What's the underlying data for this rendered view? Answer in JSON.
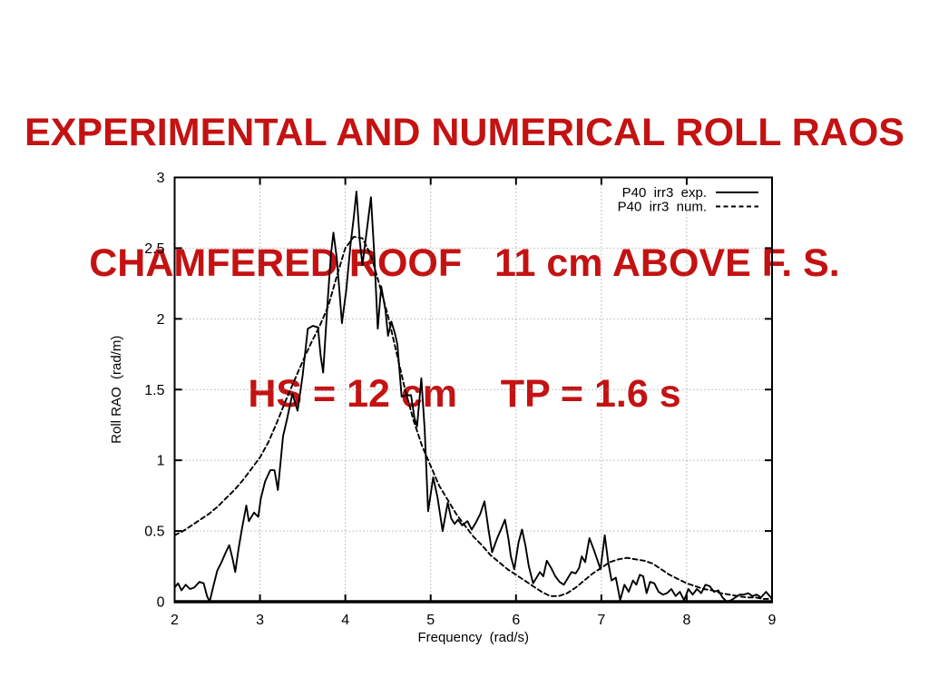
{
  "slide": {
    "title": {
      "line1": "EXPERIMENTAL AND NUMERICAL ROLL RAOS",
      "line2": "CHAMFERED ROOF   11 cm ABOVE F. S.",
      "line3": "HS = 12 cm    TP = 1.6 s",
      "color": "#c41212"
    }
  },
  "chart_data": {
    "type": "line",
    "title": "",
    "xlabel": "Frequency  (rad/s)",
    "ylabel": "Roll RAO  (rad/m)",
    "xlim": [
      2,
      9
    ],
    "ylim": [
      0,
      3
    ],
    "xticks": [
      2,
      3,
      4,
      5,
      6,
      7,
      8,
      9
    ],
    "yticks": [
      0,
      0.5,
      1,
      1.5,
      2,
      2.5,
      3
    ],
    "grid": "dotted",
    "legend_position": "top-right-inside",
    "axis_color": "#000000",
    "grid_color": "#8a8a8a",
    "series": [
      {
        "name": "P40  irr3  exp.",
        "style": "solid",
        "color": "#000000",
        "points": [
          [
            2.0,
            0.1
          ],
          [
            2.04,
            0.13
          ],
          [
            2.08,
            0.08
          ],
          [
            2.13,
            0.12
          ],
          [
            2.18,
            0.09
          ],
          [
            2.23,
            0.1
          ],
          [
            2.29,
            0.14
          ],
          [
            2.34,
            0.13
          ],
          [
            2.38,
            0.04
          ],
          [
            2.41,
            0.0
          ],
          [
            2.45,
            0.1
          ],
          [
            2.5,
            0.22
          ],
          [
            2.55,
            0.28
          ],
          [
            2.6,
            0.35
          ],
          [
            2.64,
            0.4
          ],
          [
            2.68,
            0.3
          ],
          [
            2.71,
            0.21
          ],
          [
            2.75,
            0.38
          ],
          [
            2.79,
            0.52
          ],
          [
            2.84,
            0.68
          ],
          [
            2.87,
            0.57
          ],
          [
            2.9,
            0.6
          ],
          [
            2.93,
            0.63
          ],
          [
            2.98,
            0.6
          ],
          [
            3.01,
            0.73
          ],
          [
            3.06,
            0.85
          ],
          [
            3.12,
            0.93
          ],
          [
            3.17,
            0.93
          ],
          [
            3.21,
            0.79
          ],
          [
            3.27,
            1.17
          ],
          [
            3.32,
            1.3
          ],
          [
            3.38,
            1.47
          ],
          [
            3.44,
            1.35
          ],
          [
            3.5,
            1.6
          ],
          [
            3.56,
            1.93
          ],
          [
            3.62,
            1.95
          ],
          [
            3.68,
            1.94
          ],
          [
            3.71,
            1.74
          ],
          [
            3.74,
            1.62
          ],
          [
            3.79,
            2.1
          ],
          [
            3.83,
            2.45
          ],
          [
            3.86,
            2.61
          ],
          [
            3.9,
            2.43
          ],
          [
            3.93,
            2.2
          ],
          [
            3.96,
            1.97
          ],
          [
            4.01,
            2.2
          ],
          [
            4.06,
            2.52
          ],
          [
            4.1,
            2.72
          ],
          [
            4.13,
            2.9
          ],
          [
            4.17,
            2.55
          ],
          [
            4.2,
            2.38
          ],
          [
            4.25,
            2.62
          ],
          [
            4.3,
            2.86
          ],
          [
            4.34,
            2.45
          ],
          [
            4.38,
            1.93
          ],
          [
            4.42,
            2.23
          ],
          [
            4.47,
            2.06
          ],
          [
            4.5,
            1.88
          ],
          [
            4.54,
            1.98
          ],
          [
            4.58,
            1.9
          ],
          [
            4.61,
            1.82
          ],
          [
            4.66,
            1.45
          ],
          [
            4.72,
            1.46
          ],
          [
            4.77,
            1.46
          ],
          [
            4.81,
            1.3
          ],
          [
            4.84,
            1.24
          ],
          [
            4.89,
            1.58
          ],
          [
            4.93,
            1.22
          ],
          [
            4.97,
            0.64
          ],
          [
            5.03,
            0.88
          ],
          [
            5.08,
            0.74
          ],
          [
            5.14,
            0.5
          ],
          [
            5.2,
            0.7
          ],
          [
            5.24,
            0.59
          ],
          [
            5.28,
            0.55
          ],
          [
            5.32,
            0.58
          ],
          [
            5.37,
            0.54
          ],
          [
            5.43,
            0.57
          ],
          [
            5.48,
            0.51
          ],
          [
            5.53,
            0.56
          ],
          [
            5.58,
            0.62
          ],
          [
            5.63,
            0.71
          ],
          [
            5.68,
            0.5
          ],
          [
            5.72,
            0.35
          ],
          [
            5.78,
            0.45
          ],
          [
            5.83,
            0.52
          ],
          [
            5.87,
            0.58
          ],
          [
            5.91,
            0.45
          ],
          [
            5.94,
            0.32
          ],
          [
            5.98,
            0.23
          ],
          [
            6.03,
            0.42
          ],
          [
            6.07,
            0.51
          ],
          [
            6.11,
            0.4
          ],
          [
            6.15,
            0.25
          ],
          [
            6.2,
            0.13
          ],
          [
            6.24,
            0.17
          ],
          [
            6.28,
            0.21
          ],
          [
            6.32,
            0.18
          ],
          [
            6.36,
            0.29
          ],
          [
            6.41,
            0.24
          ],
          [
            6.46,
            0.18
          ],
          [
            6.51,
            0.14
          ],
          [
            6.56,
            0.12
          ],
          [
            6.61,
            0.17
          ],
          [
            6.65,
            0.21
          ],
          [
            6.7,
            0.2
          ],
          [
            6.74,
            0.24
          ],
          [
            6.77,
            0.32
          ],
          [
            6.81,
            0.28
          ],
          [
            6.86,
            0.45
          ],
          [
            6.91,
            0.37
          ],
          [
            6.95,
            0.3
          ],
          [
            6.99,
            0.23
          ],
          [
            7.04,
            0.47
          ],
          [
            7.08,
            0.28
          ],
          [
            7.12,
            0.15
          ],
          [
            7.17,
            0.17
          ],
          [
            7.22,
            0.01
          ],
          [
            7.27,
            0.12
          ],
          [
            7.32,
            0.07
          ],
          [
            7.37,
            0.15
          ],
          [
            7.41,
            0.12
          ],
          [
            7.45,
            0.19
          ],
          [
            7.49,
            0.18
          ],
          [
            7.53,
            0.06
          ],
          [
            7.57,
            0.14
          ],
          [
            7.62,
            0.13
          ],
          [
            7.67,
            0.07
          ],
          [
            7.72,
            0.05
          ],
          [
            7.77,
            0.06
          ],
          [
            7.82,
            0.09
          ],
          [
            7.87,
            0.04
          ],
          [
            7.92,
            0.07
          ],
          [
            7.97,
            0.01
          ],
          [
            8.02,
            0.09
          ],
          [
            8.07,
            0.05
          ],
          [
            8.12,
            0.09
          ],
          [
            8.17,
            0.06
          ],
          [
            8.22,
            0.12
          ],
          [
            8.27,
            0.11
          ],
          [
            8.32,
            0.07
          ],
          [
            8.37,
            0.08
          ],
          [
            8.42,
            0.03
          ],
          [
            8.47,
            0.0
          ],
          [
            8.52,
            0.01
          ],
          [
            8.57,
            0.03
          ],
          [
            8.62,
            0.05
          ],
          [
            8.67,
            0.05
          ],
          [
            8.72,
            0.06
          ],
          [
            8.77,
            0.04
          ],
          [
            8.82,
            0.05
          ],
          [
            8.87,
            0.03
          ],
          [
            8.93,
            0.07
          ],
          [
            9.0,
            0.02
          ]
        ]
      },
      {
        "name": "P40  irr3  num.",
        "style": "dashed",
        "color": "#000000",
        "points": [
          [
            2.0,
            0.47
          ],
          [
            2.1,
            0.5
          ],
          [
            2.2,
            0.54
          ],
          [
            2.3,
            0.58
          ],
          [
            2.4,
            0.62
          ],
          [
            2.5,
            0.67
          ],
          [
            2.6,
            0.73
          ],
          [
            2.7,
            0.79
          ],
          [
            2.8,
            0.86
          ],
          [
            2.9,
            0.94
          ],
          [
            3.0,
            1.02
          ],
          [
            3.1,
            1.13
          ],
          [
            3.2,
            1.27
          ],
          [
            3.3,
            1.42
          ],
          [
            3.4,
            1.56
          ],
          [
            3.5,
            1.7
          ],
          [
            3.6,
            1.83
          ],
          [
            3.7,
            1.95
          ],
          [
            3.8,
            2.09
          ],
          [
            3.9,
            2.3
          ],
          [
            4.0,
            2.5
          ],
          [
            4.1,
            2.58
          ],
          [
            4.2,
            2.57
          ],
          [
            4.3,
            2.45
          ],
          [
            4.4,
            2.24
          ],
          [
            4.5,
            2.02
          ],
          [
            4.6,
            1.76
          ],
          [
            4.7,
            1.5
          ],
          [
            4.8,
            1.28
          ],
          [
            4.9,
            1.1
          ],
          [
            5.0,
            0.96
          ],
          [
            5.1,
            0.82
          ],
          [
            5.2,
            0.72
          ],
          [
            5.3,
            0.62
          ],
          [
            5.4,
            0.54
          ],
          [
            5.5,
            0.46
          ],
          [
            5.6,
            0.4
          ],
          [
            5.7,
            0.33
          ],
          [
            5.8,
            0.28
          ],
          [
            5.9,
            0.23
          ],
          [
            6.0,
            0.19
          ],
          [
            6.1,
            0.15
          ],
          [
            6.2,
            0.11
          ],
          [
            6.3,
            0.07
          ],
          [
            6.4,
            0.04
          ],
          [
            6.5,
            0.04
          ],
          [
            6.6,
            0.06
          ],
          [
            6.7,
            0.1
          ],
          [
            6.8,
            0.15
          ],
          [
            6.9,
            0.2
          ],
          [
            7.0,
            0.24
          ],
          [
            7.1,
            0.28
          ],
          [
            7.2,
            0.3
          ],
          [
            7.3,
            0.31
          ],
          [
            7.4,
            0.3
          ],
          [
            7.5,
            0.29
          ],
          [
            7.6,
            0.27
          ],
          [
            7.7,
            0.23
          ],
          [
            7.8,
            0.19
          ],
          [
            7.9,
            0.16
          ],
          [
            8.0,
            0.13
          ],
          [
            8.1,
            0.11
          ],
          [
            8.2,
            0.09
          ],
          [
            8.3,
            0.08
          ],
          [
            8.4,
            0.06
          ],
          [
            8.5,
            0.05
          ],
          [
            8.6,
            0.04
          ],
          [
            8.7,
            0.03
          ],
          [
            8.8,
            0.03
          ],
          [
            8.9,
            0.02
          ],
          [
            9.0,
            0.02
          ]
        ]
      }
    ]
  }
}
